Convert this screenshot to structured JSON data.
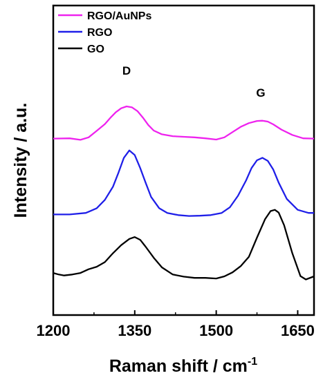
{
  "chart_data": {
    "type": "line",
    "xlabel": "Raman shift / cm",
    "xlabel_sup": "-1",
    "ylabel": "Intensity / a.u.",
    "xlim": [
      1200,
      1680
    ],
    "xticks": [
      "1200",
      "1350",
      "1500",
      "1650"
    ],
    "yticks_shown": false,
    "legend_placement": "top-left",
    "annotations": [
      {
        "text": "D",
        "x": 1335
      },
      {
        "text": "G",
        "x": 1582
      }
    ],
    "series": [
      {
        "name": "RGO/AuNPs",
        "color": "#ee22ee",
        "x": [
          1200,
          1230,
          1250,
          1265,
          1280,
          1295,
          1305,
          1315,
          1325,
          1335,
          1345,
          1355,
          1365,
          1375,
          1385,
          1400,
          1420,
          1440,
          1460,
          1480,
          1500,
          1515,
          1530,
          1545,
          1560,
          1575,
          1585,
          1595,
          1605,
          1620,
          1640,
          1660,
          1680
        ],
        "y": [
          0.57,
          0.571,
          0.566,
          0.574,
          0.595,
          0.617,
          0.637,
          0.655,
          0.668,
          0.674,
          0.671,
          0.659,
          0.638,
          0.614,
          0.596,
          0.584,
          0.578,
          0.576,
          0.574,
          0.571,
          0.567,
          0.574,
          0.591,
          0.608,
          0.62,
          0.627,
          0.628,
          0.625,
          0.616,
          0.599,
          0.582,
          0.571,
          0.57
        ]
      },
      {
        "name": "RGO",
        "color": "#1f1fe8",
        "x": [
          1200,
          1230,
          1260,
          1280,
          1295,
          1310,
          1320,
          1330,
          1340,
          1350,
          1360,
          1370,
          1380,
          1395,
          1410,
          1430,
          1450,
          1470,
          1490,
          1510,
          1525,
          1540,
          1555,
          1565,
          1575,
          1585,
          1595,
          1605,
          1615,
          1630,
          1650,
          1670,
          1680
        ],
        "y": [
          0.325,
          0.325,
          0.33,
          0.345,
          0.372,
          0.415,
          0.46,
          0.508,
          0.532,
          0.517,
          0.475,
          0.428,
          0.382,
          0.345,
          0.33,
          0.323,
          0.32,
          0.321,
          0.323,
          0.33,
          0.348,
          0.385,
          0.435,
          0.475,
          0.5,
          0.508,
          0.498,
          0.47,
          0.428,
          0.375,
          0.34,
          0.33,
          0.33
        ]
      },
      {
        "name": "GO",
        "color": "#000000",
        "x": [
          1200,
          1210,
          1220,
          1235,
          1250,
          1265,
          1280,
          1295,
          1310,
          1325,
          1340,
          1350,
          1360,
          1370,
          1385,
          1400,
          1420,
          1440,
          1460,
          1480,
          1500,
          1515,
          1530,
          1545,
          1560,
          1575,
          1590,
          1600,
          1608,
          1615,
          1625,
          1640,
          1655,
          1665,
          1680
        ],
        "y": [
          0.136,
          0.131,
          0.128,
          0.131,
          0.136,
          0.148,
          0.156,
          0.171,
          0.2,
          0.226,
          0.246,
          0.252,
          0.243,
          0.221,
          0.185,
          0.154,
          0.131,
          0.124,
          0.12,
          0.12,
          0.118,
          0.125,
          0.138,
          0.158,
          0.188,
          0.25,
          0.31,
          0.336,
          0.34,
          0.331,
          0.29,
          0.2,
          0.126,
          0.115,
          0.125
        ]
      }
    ]
  }
}
